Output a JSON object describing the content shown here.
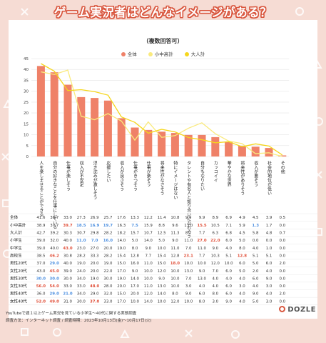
{
  "title": "ゲーム実況者はどんなイメージがある？",
  "subtitle": "（複数回答可）",
  "legend": {
    "all": "全体",
    "elem_jhs": "小中高計",
    "adult": "大人計"
  },
  "colors": {
    "all": "#ef8168",
    "elem_jhs": "#faea7d",
    "adult": "#f5d61c",
    "blue": "#4c8fe0",
    "red": "#e0503a",
    "bg": "#f6dcd4"
  },
  "footer": {
    "line1": "YouTubeで週１以上ゲーム実況を見ている小学生～40代に関する実態調査",
    "line2": "調査方法：インターネット調査 / 調査時期：2023年10月13日(金)～10月17日(火)"
  },
  "logo": "DOZLE",
  "chart_data": {
    "type": "bar",
    "categories": [
      "人を楽しませることができる",
      "自分の好きなことを仕事にしている",
      "仕事が楽しそう",
      "収入が不安定",
      "浮き沈みが激しそう",
      "応援したい",
      "収入が良さそう",
      "仕事がきつそう",
      "仕事が楽そう",
      "将来性がなさそう",
      "特にイメージはない",
      "タレントや有名人と知り合いになれそう",
      "自分もなりたい",
      "カッコイイ",
      "華やかな世界",
      "将来性がありそう",
      "収入が悪そう",
      "社会的地位が低い",
      "その他"
    ],
    "ylim": [
      0,
      45
    ],
    "yticks": [
      0,
      5,
      10,
      15,
      20,
      25,
      30,
      35,
      40,
      45
    ],
    "series": [
      {
        "name": "全体",
        "type": "bar",
        "values": [
          41.6,
          38.7,
          33.0,
          27.3,
          26.9,
          25.7,
          17.6,
          13.3,
          12.2,
          11.4,
          10.8,
          9.9,
          9.9,
          8.9,
          6.9,
          4.9,
          4.5,
          3.9,
          0.5
        ]
      },
      {
        "name": "小中高計",
        "type": "line",
        "values": [
          38.9,
          37.7,
          39.7,
          18.5,
          16.9,
          19.7,
          16.3,
          7.5,
          15.9,
          8.8,
          9.6,
          13.0,
          15.5,
          10.5,
          7.1,
          5.9,
          1.3,
          1.7,
          0.0
        ]
      },
      {
        "name": "大人計",
        "type": "line",
        "values": [
          42.7,
          39.2,
          30.3,
          30.7,
          29.8,
          28.2,
          18.2,
          15.7,
          10.7,
          12.5,
          11.3,
          8.7,
          7.7,
          6.3,
          6.8,
          4.5,
          5.8,
          4.8,
          0.7
        ]
      }
    ],
    "table": {
      "rows": [
        {
          "label": "全体",
          "values": [
            "41.6",
            "38.7",
            "33.0",
            "27.3",
            "26.9",
            "25.7",
            "17.6",
            "13.3",
            "12.2",
            "11.4",
            "10.8",
            "9.9",
            "9.9",
            "8.9",
            "6.9",
            "4.9",
            "4.5",
            "3.9",
            "0.5"
          ],
          "colors": [
            "",
            "",
            "",
            "",
            "",
            "",
            "",
            "",
            "",
            "",
            "",
            "",
            "",
            "",
            "",
            "",
            "",
            "",
            ""
          ]
        },
        {
          "label": "小中高計",
          "values": [
            "38.9",
            "37.7",
            "39.7",
            "18.5",
            "16.9",
            "19.7",
            "16.3",
            "7.5",
            "15.9",
            "8.8",
            "9.6",
            "13.0",
            "15.5",
            "10.5",
            "7.1",
            "5.9",
            "1.3",
            "1.7",
            "0.0"
          ],
          "colors": [
            "",
            "",
            "r",
            "b",
            "b",
            "b",
            "",
            "b",
            "",
            "",
            "",
            "",
            "r",
            "",
            "",
            "",
            "b",
            "",
            ""
          ]
        },
        {
          "label": "大人計",
          "values": [
            "42.7",
            "39.2",
            "30.3",
            "30.7",
            "29.8",
            "28.2",
            "18.2",
            "15.7",
            "10.7",
            "12.5",
            "11.3",
            "8.7",
            "7.7",
            "6.3",
            "6.8",
            "4.5",
            "5.8",
            "4.8",
            "0.7"
          ],
          "colors": [
            "",
            "",
            "",
            "",
            "",
            "",
            "",
            "",
            "",
            "",
            "",
            "",
            "",
            "",
            "",
            "",
            "",
            "",
            ""
          ]
        },
        {
          "label": "小学生",
          "values": [
            "39.0",
            "32.0",
            "40.0",
            "11.0",
            "7.0",
            "16.0",
            "14.0",
            "5.0",
            "14.0",
            "5.0",
            "9.0",
            "11.0",
            "27.0",
            "22.0",
            "6.0",
            "5.0",
            "0.0",
            "0.0",
            "0.0"
          ],
          "colors": [
            "",
            "",
            "",
            "b",
            "b",
            "b",
            "",
            "",
            "",
            "",
            "",
            "",
            "r",
            "r",
            "",
            "",
            "",
            "",
            ""
          ]
        },
        {
          "label": "中学生",
          "values": [
            "39.0",
            "40.0",
            "43.0",
            "23.0",
            "27.0",
            "20.0",
            "19.0",
            "8.0",
            "9.0",
            "10.0",
            "11.0",
            "7.0",
            "11.0",
            "9.0",
            "4.0",
            "8.0",
            "4.0",
            "1.0",
            "0.0"
          ],
          "colors": [
            "",
            "",
            "r",
            "",
            "",
            "",
            "",
            "",
            "",
            "",
            "",
            "",
            "",
            "",
            "",
            "",
            "",
            "",
            ""
          ]
        },
        {
          "label": "高校生",
          "values": [
            "38.5",
            "46.2",
            "30.8",
            "28.2",
            "33.3",
            "28.2",
            "15.4",
            "12.8",
            "7.7",
            "15.4",
            "12.8",
            "23.1",
            "7.7",
            "10.3",
            "5.1",
            "12.8",
            "5.1",
            "5.1",
            "0.0"
          ],
          "colors": [
            "",
            "r",
            "",
            "",
            "",
            "",
            "",
            "",
            "",
            "",
            "",
            "r",
            "",
            "",
            "",
            "r",
            "",
            "",
            ""
          ]
        },
        {
          "label": "男性20代",
          "values": [
            "37.0",
            "29.0",
            "40.0",
            "19.0",
            "20.0",
            "19.0",
            "15.0",
            "16.0",
            "11.0",
            "15.0",
            "18.0",
            "10.0",
            "10.0",
            "12.0",
            "10.0",
            "6.0",
            "5.0",
            "6.0",
            "2.0"
          ],
          "colors": [
            "",
            "b",
            "",
            "",
            "",
            "",
            "",
            "",
            "",
            "",
            "r",
            "",
            "",
            "",
            "",
            "",
            "",
            "",
            ""
          ]
        },
        {
          "label": "女性20代",
          "values": [
            "43.0",
            "45.0",
            "39.0",
            "24.0",
            "20.0",
            "22.0",
            "17.0",
            "9.0",
            "10.0",
            "12.0",
            "10.0",
            "13.0",
            "9.0",
            "7.0",
            "6.0",
            "5.0",
            "2.0",
            "4.0",
            "0.0"
          ],
          "colors": [
            "",
            "r",
            "",
            "",
            "",
            "",
            "",
            "",
            "",
            "",
            "",
            "",
            "",
            "",
            "",
            "",
            "",
            "",
            ""
          ]
        },
        {
          "label": "男性30代",
          "values": [
            "30.0",
            "30.0",
            "30.0",
            "34.0",
            "19.0",
            "30.0",
            "19.0",
            "14.0",
            "10.0",
            "9.0",
            "10.0",
            "7.0",
            "13.0",
            "4.0",
            "4.0",
            "4.0",
            "6.0",
            "9.0",
            "0.0"
          ],
          "colors": [
            "b",
            "b",
            "",
            "",
            "",
            "",
            "",
            "",
            "",
            "",
            "",
            "",
            "",
            "",
            "",
            "",
            "",
            "",
            ""
          ]
        },
        {
          "label": "女性30代",
          "values": [
            "56.0",
            "54.0",
            "33.0",
            "33.0",
            "48.0",
            "28.0",
            "20.0",
            "17.0",
            "11.0",
            "13.0",
            "10.0",
            "3.0",
            "4.0",
            "4.0",
            "6.0",
            "3.0",
            "4.0",
            "3.0",
            "0.0"
          ],
          "colors": [
            "r",
            "r",
            "",
            "",
            "r",
            "",
            "",
            "",
            "",
            "",
            "",
            "",
            "",
            "",
            "",
            "",
            "",
            "",
            ""
          ]
        },
        {
          "label": "男性40代",
          "values": [
            "36.0",
            "29.0",
            "21.0",
            "34.0",
            "29.0",
            "32.0",
            "15.0",
            "20.0",
            "12.0",
            "14.0",
            "8.0",
            "9.0",
            "6.0",
            "8.0",
            "6.0",
            "4.0",
            "9.0",
            "4.0",
            "2.0"
          ],
          "colors": [
            "",
            "b",
            "b",
            "",
            "",
            "",
            "",
            "",
            "",
            "",
            "",
            "",
            "",
            "",
            "",
            "",
            "",
            "",
            ""
          ]
        },
        {
          "label": "女性40代",
          "values": [
            "52.0",
            "49.0",
            "31.0",
            "30.0",
            "37.0",
            "33.0",
            "17.0",
            "10.0",
            "14.0",
            "10.0",
            "12.0",
            "10.0",
            "8.0",
            "3.0",
            "9.0",
            "4.0",
            "5.0",
            "3.0",
            "0.0"
          ],
          "colors": [
            "r",
            "r",
            "",
            "",
            "r",
            "",
            "",
            "",
            "",
            "",
            "",
            "",
            "",
            "",
            "",
            "",
            "",
            "",
            ""
          ]
        }
      ]
    }
  }
}
